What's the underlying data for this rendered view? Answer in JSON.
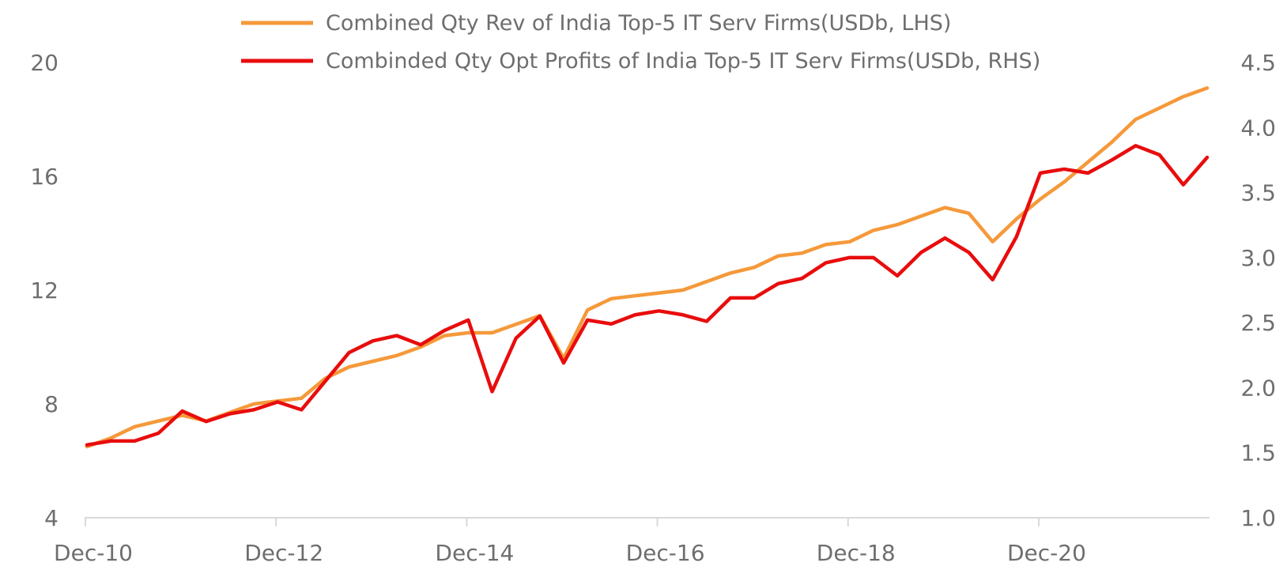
{
  "colors": {
    "revenue": "#f5993a",
    "profit": "#e80d0d",
    "axis": "#d9d9d9",
    "text": "#6e6e6e"
  },
  "chart_data": {
    "type": "line",
    "x_tick_labels": [
      "Dec-10",
      "Dec-12",
      "Dec-14",
      "Dec-16",
      "Dec-18",
      "Dec-20"
    ],
    "y_left": {
      "ticks": [
        "4",
        "8",
        "12",
        "16",
        "20"
      ],
      "lim": [
        4,
        20
      ]
    },
    "y_right": {
      "ticks": [
        "1.0",
        "1.5",
        "2.0",
        "2.5",
        "3.0",
        "3.5",
        "4.0",
        "4.5"
      ],
      "lim": [
        1.0,
        4.5
      ]
    },
    "grid": false,
    "legend_position": "top-center",
    "x_quarters": [
      "Dec-10",
      "Mar-11",
      "Jun-11",
      "Sep-11",
      "Dec-11",
      "Mar-12",
      "Jun-12",
      "Sep-12",
      "Dec-12",
      "Mar-13",
      "Jun-13",
      "Sep-13",
      "Dec-13",
      "Mar-14",
      "Jun-14",
      "Sep-14",
      "Dec-14",
      "Mar-15",
      "Jun-15",
      "Sep-15",
      "Dec-15",
      "Mar-16",
      "Jun-16",
      "Sep-16",
      "Dec-16",
      "Mar-17",
      "Jun-17",
      "Sep-17",
      "Dec-17",
      "Mar-18",
      "Jun-18",
      "Sep-18",
      "Dec-18",
      "Mar-19",
      "Jun-19",
      "Sep-19",
      "Dec-19",
      "Mar-20",
      "Jun-20",
      "Sep-20",
      "Dec-20",
      "Mar-21",
      "Jun-21",
      "Sep-21",
      "Dec-21",
      "Mar-22",
      "Jun-22",
      "Sep-22"
    ],
    "series": [
      {
        "name": "Combined Qty Rev of India Top-5 IT Serv Firms(USDb, LHS)",
        "axis": "left",
        "values": [
          6.5,
          6.8,
          7.2,
          7.4,
          7.6,
          7.4,
          7.7,
          8.0,
          8.1,
          8.2,
          8.9,
          9.3,
          9.5,
          9.7,
          10.0,
          10.4,
          10.5,
          10.5,
          10.8,
          11.1,
          9.6,
          11.3,
          11.7,
          11.8,
          11.9,
          12.0,
          12.3,
          12.6,
          12.8,
          13.2,
          13.3,
          13.6,
          13.7,
          14.1,
          14.3,
          14.6,
          14.9,
          14.7,
          13.7,
          14.5,
          15.2,
          15.8,
          16.5,
          17.2,
          18.0,
          18.4,
          18.8,
          19.1
        ]
      },
      {
        "name": "Combinded Qty Opt Profits of India Top-5 IT Serv Firms(USDb, RHS)",
        "axis": "right",
        "values": [
          1.56,
          1.59,
          1.59,
          1.65,
          1.82,
          1.74,
          1.8,
          1.83,
          1.89,
          1.83,
          2.05,
          2.27,
          2.36,
          2.4,
          2.33,
          2.44,
          2.52,
          1.97,
          2.38,
          2.55,
          2.19,
          2.52,
          2.49,
          2.56,
          2.59,
          2.56,
          2.51,
          2.69,
          2.69,
          2.8,
          2.84,
          2.96,
          3.0,
          3.0,
          2.86,
          3.04,
          3.15,
          3.04,
          2.83,
          3.16,
          3.65,
          3.68,
          3.65,
          3.75,
          3.86,
          3.79,
          3.56,
          3.77
        ]
      }
    ]
  }
}
